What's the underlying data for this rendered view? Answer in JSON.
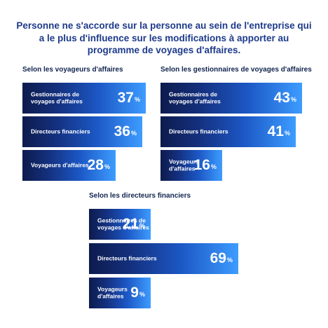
{
  "title": "Personne ne s'accorde sur la personne au sein de l'entreprise qui a le plus d'influence sur les modifications à apporter au programme de voyages d'affaires.",
  "percent_symbol": "%",
  "chart_data": [
    {
      "type": "bar",
      "title": "Selon les voyageurs d'affaires",
      "categories": [
        "Gestionnaires de voyages d'affaires",
        "Directeurs financiers",
        "Voyageurs d'affaires"
      ],
      "values": [
        37,
        36,
        28
      ],
      "unit": "%"
    },
    {
      "type": "bar",
      "title": "Selon les gestionnaires de voyages d'affaires",
      "categories": [
        "Gestionnaires de voyages d'affaires",
        "Directeurs financiers",
        "Voyageurs d'affaires"
      ],
      "values": [
        43,
        41,
        16
      ],
      "unit": "%"
    },
    {
      "type": "bar",
      "title": "Selon les directeurs financiers",
      "categories": [
        "Gestionnaires de voyages d'affaires",
        "Directeurs financiers",
        "Voyageurs d'affaires"
      ],
      "values": [
        21,
        69,
        9
      ],
      "unit": "%"
    }
  ]
}
